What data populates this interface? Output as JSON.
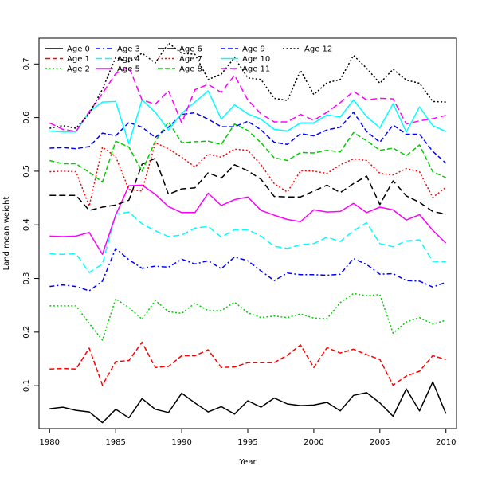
{
  "chart_data": {
    "type": "line",
    "title": "",
    "xlabel": "Year",
    "ylabel": "Land mean weight",
    "xlim": [
      1979.2,
      2010.8
    ],
    "ylim": [
      0.02,
      0.748
    ],
    "xticks": [
      1980,
      1985,
      1990,
      1995,
      2000,
      2005,
      2010
    ],
    "yticks": [
      0.1,
      0.2,
      0.3,
      0.4,
      0.5,
      0.6,
      0.7
    ],
    "grid": false,
    "legend_position": "top-left",
    "x": [
      1980,
      1981,
      1982,
      1983,
      1984,
      1985,
      1986,
      1987,
      1988,
      1989,
      1990,
      1991,
      1992,
      1993,
      1994,
      1995,
      1996,
      1997,
      1998,
      1999,
      2000,
      2001,
      2002,
      2003,
      2004,
      2005,
      2006,
      2007,
      2008,
      2009,
      2010
    ],
    "series": [
      {
        "name": "Age 0",
        "color": "#000000",
        "dash": "solid",
        "values": [
          0.057,
          0.06,
          0.054,
          0.051,
          0.031,
          0.056,
          0.04,
          0.076,
          0.056,
          0.05,
          0.086,
          0.068,
          0.051,
          0.061,
          0.047,
          0.072,
          0.06,
          0.077,
          0.066,
          0.063,
          0.064,
          0.069,
          0.053,
          0.082,
          0.087,
          0.068,
          0.043,
          0.094,
          0.053,
          0.107,
          0.048
        ]
      },
      {
        "name": "Age 1",
        "color": "#ff0000",
        "dash": "dashed",
        "values": [
          0.131,
          0.132,
          0.131,
          0.17,
          0.101,
          0.145,
          0.147,
          0.181,
          0.134,
          0.136,
          0.156,
          0.156,
          0.167,
          0.134,
          0.135,
          0.143,
          0.143,
          0.143,
          0.157,
          0.176,
          0.134,
          0.171,
          0.161,
          0.168,
          0.158,
          0.149,
          0.101,
          0.118,
          0.127,
          0.156,
          0.149
        ]
      },
      {
        "name": "Age 2",
        "color": "#00cd00",
        "dash": "dotted",
        "values": [
          0.249,
          0.249,
          0.249,
          0.216,
          0.185,
          0.262,
          0.246,
          0.224,
          0.259,
          0.238,
          0.235,
          0.254,
          0.24,
          0.24,
          0.256,
          0.236,
          0.227,
          0.23,
          0.227,
          0.234,
          0.226,
          0.225,
          0.255,
          0.272,
          0.268,
          0.27,
          0.198,
          0.219,
          0.227,
          0.215,
          0.222
        ]
      },
      {
        "name": "Age 3",
        "color": "#0000ff",
        "dash": "dashdot",
        "values": [
          0.285,
          0.288,
          0.285,
          0.277,
          0.295,
          0.356,
          0.335,
          0.319,
          0.323,
          0.321,
          0.336,
          0.327,
          0.333,
          0.318,
          0.34,
          0.333,
          0.314,
          0.296,
          0.31,
          0.307,
          0.307,
          0.306,
          0.308,
          0.337,
          0.326,
          0.308,
          0.309,
          0.296,
          0.295,
          0.284,
          0.293
        ]
      },
      {
        "name": "Age 4",
        "color": "#00ffff",
        "dash": "longdash",
        "values": [
          0.346,
          0.345,
          0.346,
          0.311,
          0.327,
          0.42,
          0.424,
          0.402,
          0.389,
          0.378,
          0.381,
          0.394,
          0.397,
          0.377,
          0.391,
          0.391,
          0.379,
          0.36,
          0.356,
          0.363,
          0.365,
          0.377,
          0.369,
          0.389,
          0.404,
          0.365,
          0.359,
          0.37,
          0.372,
          0.332,
          0.331
        ]
      },
      {
        "name": "Age 5",
        "color": "#ff00ff",
        "dash": "solid",
        "values": [
          0.379,
          0.378,
          0.379,
          0.386,
          0.345,
          0.418,
          0.473,
          0.474,
          0.457,
          0.434,
          0.423,
          0.423,
          0.459,
          0.436,
          0.447,
          0.452,
          0.427,
          0.418,
          0.41,
          0.406,
          0.428,
          0.424,
          0.425,
          0.44,
          0.423,
          0.433,
          0.428,
          0.409,
          0.419,
          0.39,
          0.366
        ]
      },
      {
        "name": "Age 6",
        "color": "#000000",
        "dash": "longdash",
        "values": [
          0.455,
          0.455,
          0.455,
          0.427,
          0.433,
          0.437,
          0.446,
          0.513,
          0.524,
          0.457,
          0.467,
          0.469,
          0.497,
          0.487,
          0.512,
          0.501,
          0.485,
          0.453,
          0.452,
          0.452,
          0.463,
          0.474,
          0.46,
          0.477,
          0.491,
          0.438,
          0.482,
          0.454,
          0.442,
          0.425,
          0.42
        ]
      },
      {
        "name": "Age 7",
        "color": "#ff0000",
        "dash": "dotted",
        "values": [
          0.499,
          0.5,
          0.499,
          0.435,
          0.545,
          0.527,
          0.466,
          0.463,
          0.553,
          0.542,
          0.526,
          0.508,
          0.532,
          0.526,
          0.541,
          0.539,
          0.512,
          0.477,
          0.461,
          0.501,
          0.5,
          0.496,
          0.512,
          0.523,
          0.52,
          0.496,
          0.493,
          0.505,
          0.499,
          0.451,
          0.47
        ]
      },
      {
        "name": "Age 8",
        "color": "#00cd00",
        "dash": "dashed",
        "values": [
          0.52,
          0.514,
          0.514,
          0.498,
          0.48,
          0.556,
          0.545,
          0.5,
          0.556,
          0.592,
          0.553,
          0.555,
          0.556,
          0.55,
          0.588,
          0.576,
          0.553,
          0.525,
          0.52,
          0.535,
          0.534,
          0.539,
          0.536,
          0.572,
          0.557,
          0.539,
          0.543,
          0.529,
          0.549,
          0.499,
          0.488
        ]
      },
      {
        "name": "Age 9",
        "color": "#0000ff",
        "dash": "dashed",
        "values": [
          0.543,
          0.544,
          0.542,
          0.546,
          0.571,
          0.566,
          0.591,
          0.582,
          0.563,
          0.582,
          0.606,
          0.609,
          0.597,
          0.583,
          0.583,
          0.593,
          0.577,
          0.554,
          0.55,
          0.57,
          0.566,
          0.577,
          0.582,
          0.61,
          0.574,
          0.554,
          0.586,
          0.569,
          0.569,
          0.537,
          0.515
        ]
      },
      {
        "name": "Age 10",
        "color": "#00ffff",
        "dash": "solid",
        "values": [
          0.575,
          0.573,
          0.573,
          0.611,
          0.629,
          0.63,
          0.551,
          0.633,
          0.61,
          0.577,
          0.608,
          0.629,
          0.65,
          0.597,
          0.624,
          0.607,
          0.597,
          0.578,
          0.575,
          0.59,
          0.59,
          0.605,
          0.601,
          0.633,
          0.602,
          0.581,
          0.626,
          0.573,
          0.62,
          0.585,
          0.574
        ]
      },
      {
        "name": "Age 11",
        "color": "#ff00ff",
        "dash": "longdash",
        "values": [
          0.59,
          0.578,
          0.574,
          0.611,
          0.645,
          0.682,
          0.695,
          0.633,
          0.625,
          0.65,
          0.59,
          0.652,
          0.662,
          0.647,
          0.679,
          0.633,
          0.607,
          0.592,
          0.592,
          0.606,
          0.595,
          0.61,
          0.628,
          0.649,
          0.633,
          0.636,
          0.635,
          0.588,
          0.594,
          0.598,
          0.604
        ]
      },
      {
        "name": "Age 12",
        "color": "#000000",
        "dash": "dotted",
        "values": [
          0.58,
          0.585,
          0.58,
          0.607,
          0.653,
          0.712,
          0.704,
          0.72,
          0.702,
          0.739,
          0.72,
          0.718,
          0.671,
          0.681,
          0.712,
          0.674,
          0.671,
          0.636,
          0.632,
          0.688,
          0.643,
          0.665,
          0.671,
          0.716,
          0.692,
          0.664,
          0.69,
          0.67,
          0.664,
          0.63,
          0.629
        ]
      }
    ]
  }
}
